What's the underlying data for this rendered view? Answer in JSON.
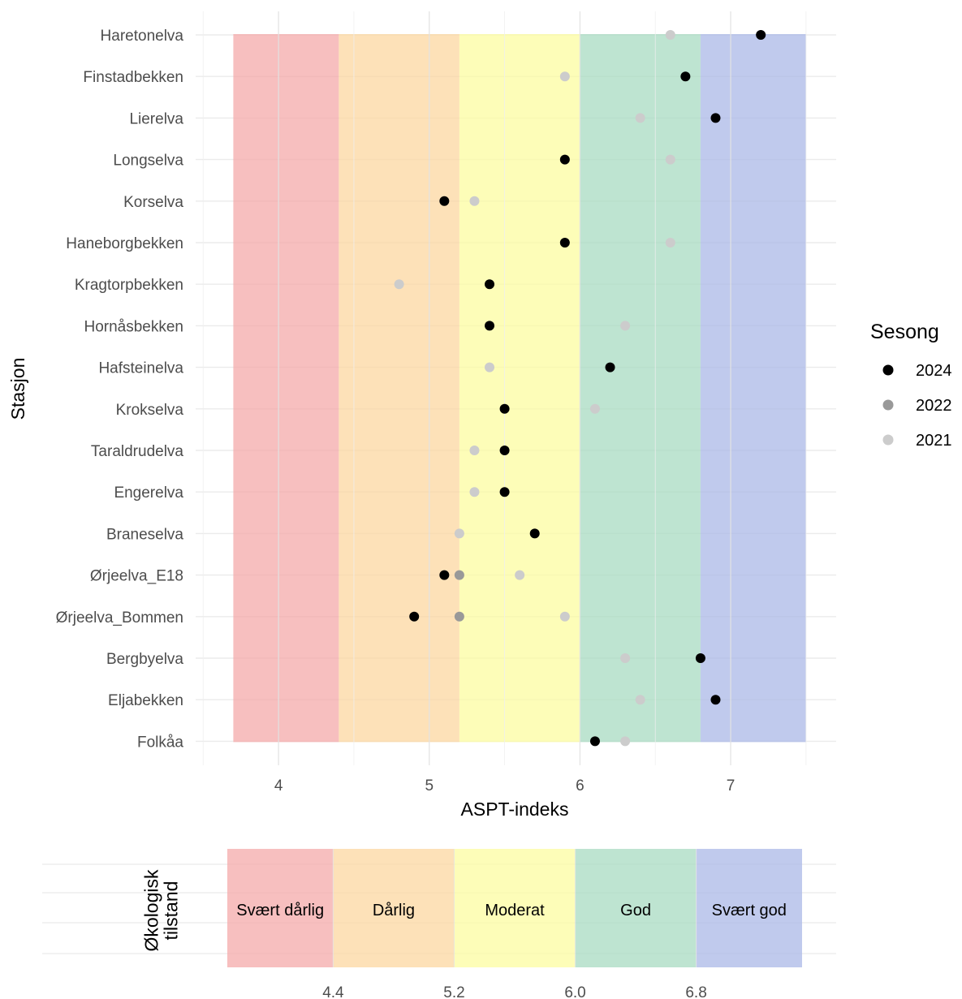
{
  "chart_data": [
    {
      "type": "scatter",
      "xlabel": "ASPT-indeks",
      "ylabel": "Stasjon",
      "xlim": [
        3.45,
        7.7
      ],
      "x_ticks": [
        "4",
        "5",
        "6",
        "7"
      ],
      "grid": true,
      "categories": [
        "Haretonelva",
        "Finstadbekken",
        "Lierelva",
        "Longselva",
        "Korselva",
        "Haneborgbekken",
        "Kragtorpbekken",
        "Hornåsbekken",
        "Hafsteinelva",
        "Krokselva",
        "Taraldrudelva",
        "Engerelva",
        "Braneselva",
        "Ørjeelva_E18",
        "Ørjeelva_Bommen",
        "Bergbyelva",
        "Eljabekken",
        "Folkåa"
      ],
      "background_bands": [
        {
          "class": "Svært dårlig",
          "from": 3.7,
          "to": 4.4,
          "color": "#f4a6a6"
        },
        {
          "class": "Dårlig",
          "from": 4.4,
          "to": 5.2,
          "color": "#fcd59c"
        },
        {
          "class": "Moderat",
          "from": 5.2,
          "to": 6.0,
          "color": "#fcfc9c"
        },
        {
          "class": "God",
          "from": 6.0,
          "to": 6.8,
          "color": "#a5d9bf"
        },
        {
          "class": "Svært god",
          "from": 6.8,
          "to": 7.5,
          "color": "#a8b6e6"
        }
      ],
      "legend": {
        "title": "Sesong",
        "placement": "right"
      },
      "series": [
        {
          "name": "2021",
          "color": "#cccccc",
          "values": [
            6.6,
            5.9,
            6.4,
            6.6,
            5.3,
            6.6,
            4.8,
            6.3,
            5.4,
            6.1,
            5.3,
            5.3,
            5.2,
            5.6,
            5.9,
            6.3,
            6.4,
            6.3
          ]
        },
        {
          "name": "2022",
          "color": "#999999",
          "values": [
            null,
            null,
            null,
            null,
            null,
            null,
            null,
            null,
            null,
            null,
            null,
            null,
            null,
            5.2,
            5.2,
            null,
            null,
            null
          ]
        },
        {
          "name": "2024",
          "color": "#000000",
          "values": [
            7.2,
            6.7,
            6.9,
            5.9,
            5.1,
            5.9,
            5.4,
            5.4,
            6.2,
            5.5,
            5.5,
            5.5,
            5.7,
            5.1,
            4.9,
            6.8,
            6.9,
            6.1
          ]
        }
      ],
      "legend_order": [
        "2024",
        "2022",
        "2021"
      ]
    },
    {
      "type": "bar",
      "ylabel": "Økologisk tilstand",
      "boundary_ticks": [
        "4.4",
        "5.2",
        "6.0",
        "6.8"
      ],
      "classes": [
        {
          "label": "Svært dårlig",
          "from": 3.7,
          "to": 4.4,
          "color": "#f4a6a6"
        },
        {
          "label": "Dårlig",
          "from": 4.4,
          "to": 5.2,
          "color": "#fcd59c"
        },
        {
          "label": "Moderat",
          "from": 5.2,
          "to": 6.0,
          "color": "#fcfc9c"
        },
        {
          "label": "God",
          "from": 6.0,
          "to": 6.8,
          "color": "#a5d9bf"
        },
        {
          "label": "Svært god",
          "from": 6.8,
          "to": 7.5,
          "color": "#a8b6e6"
        }
      ]
    }
  ]
}
